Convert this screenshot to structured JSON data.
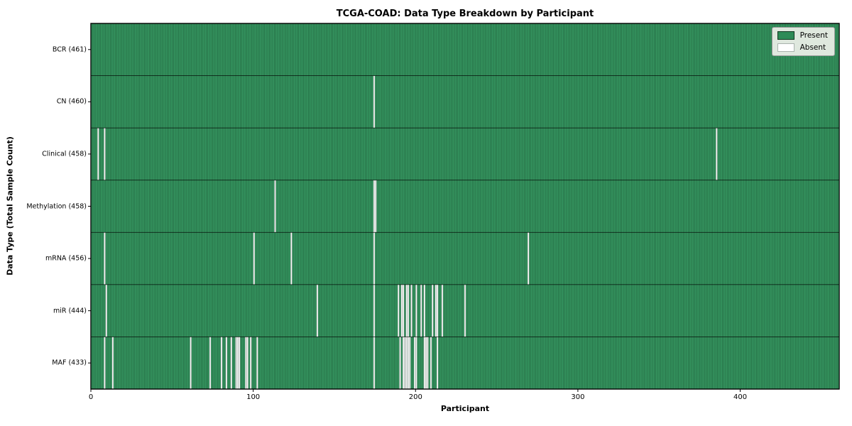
{
  "title": "TCGA-COAD: Data Type Breakdown by Participant",
  "legend": {
    "present_label": "Present",
    "absent_label": "Absent"
  },
  "colors": {
    "present": "#379a63",
    "absent": "#ffffff",
    "cell_edge": "rgba(10,35,20,0.5)",
    "row_separator": "rgba(0,0,0,0.75)",
    "plot_border": "#000000",
    "legend_bg": "#dfe8de"
  },
  "chart_data": {
    "type": "heatmap",
    "title": "TCGA-COAD: Data Type Breakdown by Participant",
    "xlabel": "Participant",
    "ylabel": "Data Type (Total Sample Count)",
    "legend": [
      "Present",
      "Absent"
    ],
    "legend_position": "upper right",
    "n_participants": 461,
    "x_ticks": [
      0,
      100,
      200,
      300,
      400
    ],
    "xlim": [
      0,
      461
    ],
    "cell_values": "1 = present (green), 0 = absent (white); rows list absent participant indices",
    "rows": [
      {
        "label": "BCR (461)",
        "data_type": "BCR",
        "total": 461,
        "absent_indices": []
      },
      {
        "label": "CN (460)",
        "data_type": "CN",
        "total": 460,
        "absent_indices": [
          174
        ]
      },
      {
        "label": "Clinical (458)",
        "data_type": "Clinical",
        "total": 458,
        "absent_indices": [
          4,
          8,
          385
        ]
      },
      {
        "label": "Methylation (458)",
        "data_type": "Methylation",
        "total": 458,
        "absent_indices": [
          113,
          174,
          175
        ]
      },
      {
        "label": "mRNA (456)",
        "data_type": "mRNA",
        "total": 456,
        "absent_indices": [
          8,
          100,
          123,
          174,
          269
        ]
      },
      {
        "label": "miR (444)",
        "data_type": "miR",
        "total": 444,
        "absent_indices": [
          9,
          139,
          174,
          189,
          191,
          192,
          194,
          195,
          197,
          200,
          203,
          205,
          210,
          212,
          213,
          216,
          230
        ]
      },
      {
        "label": "MAF (433)",
        "data_type": "MAF",
        "total": 433,
        "absent_indices": [
          8,
          13,
          61,
          73,
          80,
          83,
          86,
          89,
          90,
          91,
          95,
          96,
          98,
          102,
          174,
          190,
          192,
          193,
          194,
          195,
          196,
          199,
          200,
          205,
          206,
          207,
          209,
          213
        ]
      }
    ]
  }
}
